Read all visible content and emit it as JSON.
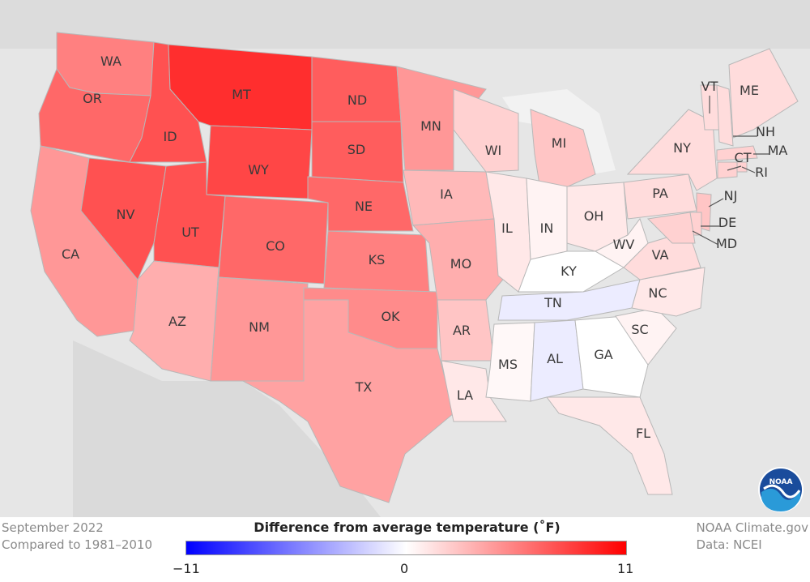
{
  "title_line1": "September 2022",
  "title_line2": "Compared to 1981–2010",
  "legend": {
    "title": "Difference from average temperature (˚F)",
    "min": "−11",
    "mid": "0",
    "max": "11",
    "low_color": "#0000ff",
    "mid_color": "#ffffff",
    "high_color": "#ff0000"
  },
  "credit_line1": "NOAA Climate.gov",
  "credit_line2": "Data: NCEI",
  "logo_text": "NOAA",
  "states": [
    {
      "abbr": "WA",
      "anomaly": 5.5
    },
    {
      "abbr": "OR",
      "anomaly": 6.5
    },
    {
      "abbr": "CA",
      "anomaly": 4.5
    },
    {
      "abbr": "ID",
      "anomaly": 7.5
    },
    {
      "abbr": "NV",
      "anomaly": 7.5
    },
    {
      "abbr": "MT",
      "anomaly": 9
    },
    {
      "abbr": "WY",
      "anomaly": 8
    },
    {
      "abbr": "UT",
      "anomaly": 7.5
    },
    {
      "abbr": "AZ",
      "anomaly": 3.5
    },
    {
      "abbr": "CO",
      "anomaly": 6.5
    },
    {
      "abbr": "NM",
      "anomaly": 4.5
    },
    {
      "abbr": "ND",
      "anomaly": 7
    },
    {
      "abbr": "SD",
      "anomaly": 7
    },
    {
      "abbr": "NE",
      "anomaly": 6.5
    },
    {
      "abbr": "KS",
      "anomaly": 5.5
    },
    {
      "abbr": "OK",
      "anomaly": 5
    },
    {
      "abbr": "TX",
      "anomaly": 4
    },
    {
      "abbr": "MN",
      "anomaly": 4.5
    },
    {
      "abbr": "IA",
      "anomaly": 3
    },
    {
      "abbr": "MO",
      "anomaly": 3.5
    },
    {
      "abbr": "AR",
      "anomaly": 2.5
    },
    {
      "abbr": "LA",
      "anomaly": 1
    },
    {
      "abbr": "WI",
      "anomaly": 2
    },
    {
      "abbr": "IL",
      "anomaly": 1
    },
    {
      "abbr": "MI",
      "anomaly": 2.5
    },
    {
      "abbr": "IN",
      "anomaly": 0.5
    },
    {
      "abbr": "OH",
      "anomaly": 1
    },
    {
      "abbr": "KY",
      "anomaly": 0
    },
    {
      "abbr": "TN",
      "anomaly": -0.8
    },
    {
      "abbr": "MS",
      "anomaly": 0.3
    },
    {
      "abbr": "AL",
      "anomaly": -0.8
    },
    {
      "abbr": "GA",
      "anomaly": 0
    },
    {
      "abbr": "FL",
      "anomaly": 1
    },
    {
      "abbr": "SC",
      "anomaly": 0.5
    },
    {
      "abbr": "NC",
      "anomaly": 1
    },
    {
      "abbr": "VA",
      "anomaly": 1.5
    },
    {
      "abbr": "WV",
      "anomaly": 0.5
    },
    {
      "abbr": "PA",
      "anomaly": 1.5
    },
    {
      "abbr": "NY",
      "anomaly": 1.5
    },
    {
      "abbr": "VT",
      "anomaly": 1.5
    },
    {
      "abbr": "NH",
      "anomaly": 1.5
    },
    {
      "abbr": "ME",
      "anomaly": 1.5
    },
    {
      "abbr": "MA",
      "anomaly": 2
    },
    {
      "abbr": "RI",
      "anomaly": 2
    },
    {
      "abbr": "CT",
      "anomaly": 2
    },
    {
      "abbr": "NJ",
      "anomaly": 2.5
    },
    {
      "abbr": "DE",
      "anomaly": 2
    },
    {
      "abbr": "MD",
      "anomaly": 2
    }
  ]
}
